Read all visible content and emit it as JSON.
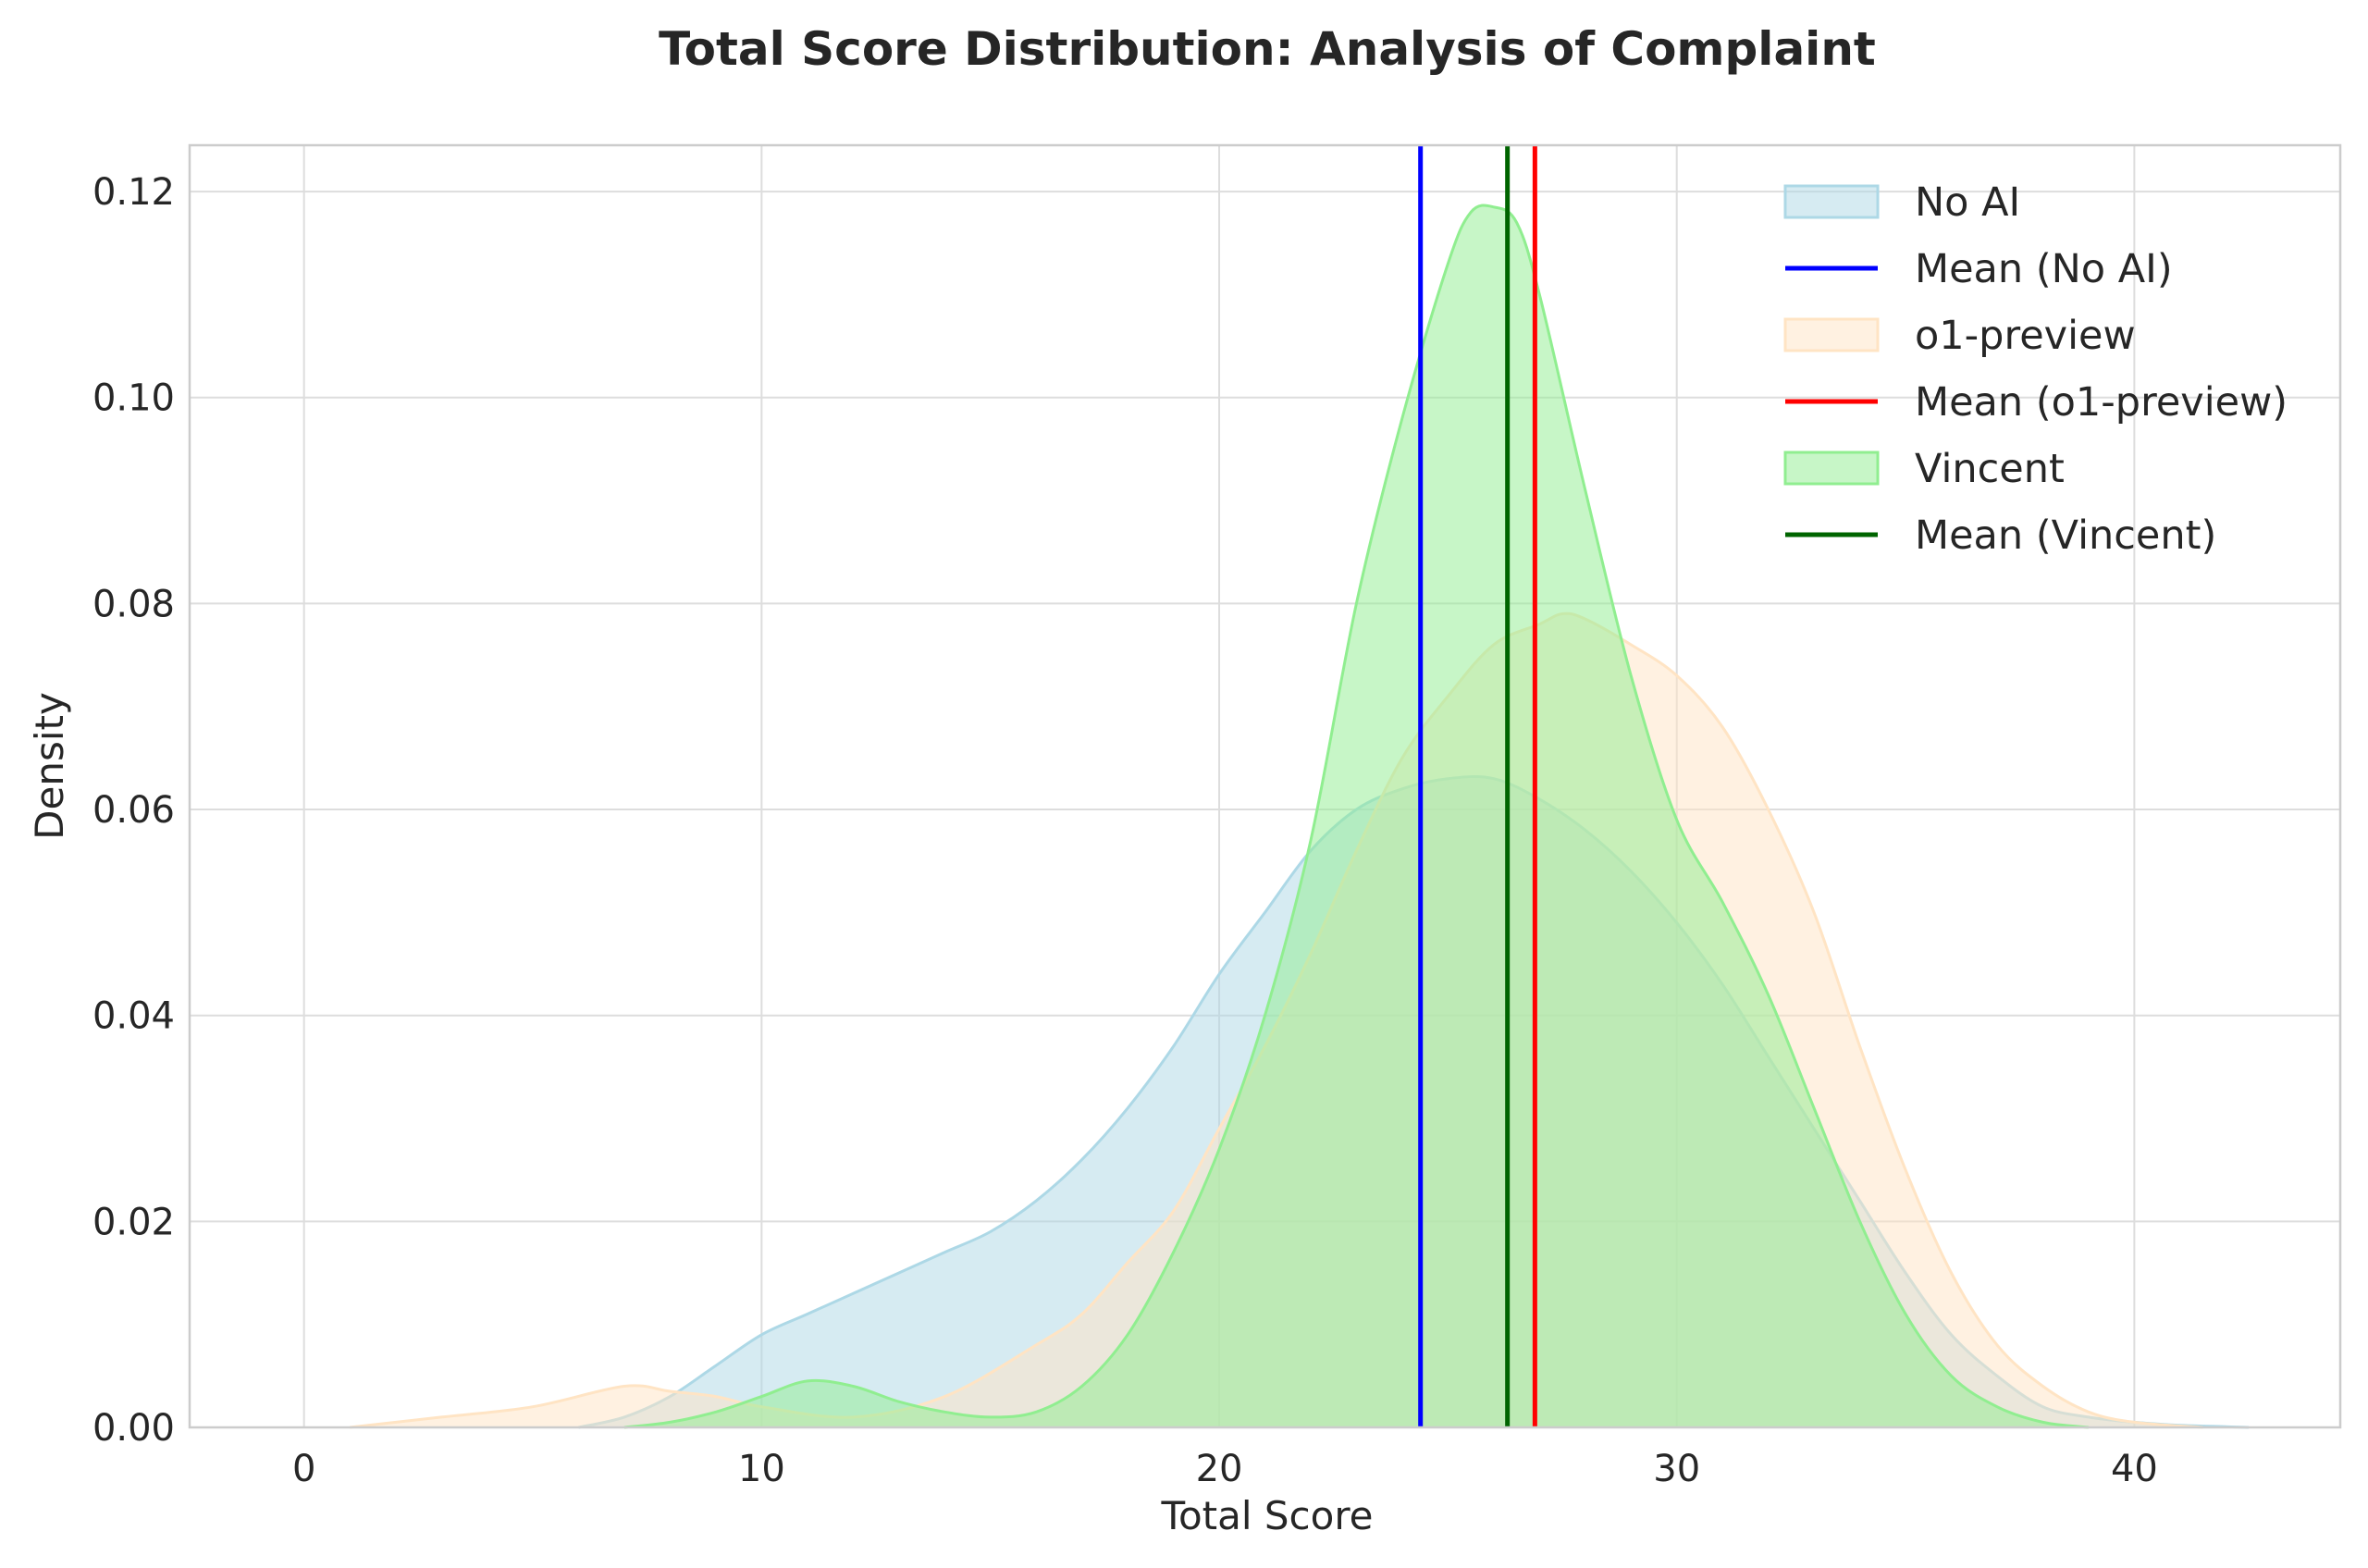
{
  "chart_data": {
    "type": "area",
    "title": "Total Score Distribution: Analysis of Complaint",
    "xlabel": "Total Score",
    "ylabel": "Density",
    "xlim": [
      -2.5,
      44.5
    ],
    "ylim": [
      0,
      0.1245
    ],
    "x_ticks": [
      0,
      10,
      20,
      30,
      40
    ],
    "x_tick_labels": [
      "0",
      "10",
      "20",
      "30",
      "40"
    ],
    "y_ticks": [
      0,
      0.02,
      0.04,
      0.06,
      0.08,
      0.1,
      0.12
    ],
    "y_tick_labels": [
      "0.00",
      "0.02",
      "0.04",
      "0.06",
      "0.08",
      "0.10",
      "0.12"
    ],
    "grid": true,
    "legend_position": "top-right",
    "series": [
      {
        "name": "No AI",
        "color": "#add8e6",
        "x": [
          6,
          7,
          8,
          9,
          10,
          11,
          12,
          13,
          14,
          15,
          16,
          17,
          18,
          19,
          20,
          21,
          22,
          23,
          24,
          25,
          26,
          27,
          28,
          29,
          30,
          31,
          32,
          33,
          34,
          35,
          36,
          37,
          38,
          39,
          40,
          41,
          42.5
        ],
        "values": [
          0.0,
          0.001,
          0.003,
          0.006,
          0.009,
          0.011,
          0.013,
          0.015,
          0.017,
          0.019,
          0.022,
          0.026,
          0.031,
          0.037,
          0.044,
          0.05,
          0.056,
          0.06,
          0.062,
          0.063,
          0.063,
          0.061,
          0.058,
          0.054,
          0.049,
          0.043,
          0.036,
          0.029,
          0.022,
          0.015,
          0.009,
          0.005,
          0.002,
          0.001,
          0.0005,
          0.0002,
          0.0
        ]
      },
      {
        "name": "o1-preview",
        "color": "#ffe4c4",
        "x": [
          1,
          3,
          5,
          7,
          8,
          9,
          10,
          12,
          14,
          16,
          17,
          18,
          19,
          20,
          21,
          22,
          23,
          24,
          25,
          26,
          27,
          27.5,
          28,
          29,
          30,
          31,
          32,
          33,
          34,
          35,
          36,
          37,
          38,
          39,
          40,
          41.5
        ],
        "values": [
          0.0,
          0.001,
          0.002,
          0.004,
          0.0035,
          0.003,
          0.002,
          0.001,
          0.003,
          0.008,
          0.011,
          0.016,
          0.021,
          0.029,
          0.037,
          0.046,
          0.056,
          0.065,
          0.071,
          0.076,
          0.078,
          0.079,
          0.0785,
          0.076,
          0.073,
          0.068,
          0.06,
          0.05,
          0.037,
          0.025,
          0.015,
          0.008,
          0.004,
          0.0015,
          0.0005,
          0.0
        ]
      },
      {
        "name": "Vincent",
        "color": "#90ee90",
        "x": [
          7,
          8,
          9,
          10,
          11,
          12,
          13,
          14,
          15,
          16,
          17,
          18,
          19,
          20,
          21,
          22,
          23,
          24,
          25,
          25.5,
          26,
          26.5,
          27,
          28,
          29,
          30,
          31,
          32,
          33,
          34,
          35,
          36,
          37,
          38,
          39
        ],
        "values": [
          0.0,
          0.0005,
          0.0015,
          0.003,
          0.0045,
          0.004,
          0.0025,
          0.0015,
          0.001,
          0.0015,
          0.004,
          0.009,
          0.017,
          0.027,
          0.04,
          0.057,
          0.08,
          0.098,
          0.113,
          0.118,
          0.1185,
          0.117,
          0.11,
          0.091,
          0.073,
          0.059,
          0.051,
          0.042,
          0.031,
          0.02,
          0.011,
          0.005,
          0.002,
          0.0005,
          0.0
        ]
      }
    ],
    "mean_lines": [
      {
        "name": "Mean (No AI)",
        "x": 24.4,
        "color": "#0000ff"
      },
      {
        "name": "Mean (o1-preview)",
        "x": 26.9,
        "color": "#ff0000"
      },
      {
        "name": "Mean (Vincent)",
        "x": 26.3,
        "color": "#006400"
      }
    ],
    "legend": [
      {
        "label": "No AI",
        "kind": "patch",
        "fill": "#add8e6",
        "fill_opacity": 0.5,
        "stroke": "#add8e6"
      },
      {
        "label": "Mean (No AI)",
        "kind": "line",
        "stroke": "#0000ff"
      },
      {
        "label": "o1-preview",
        "kind": "patch",
        "fill": "#ffe4c4",
        "fill_opacity": 0.5,
        "stroke": "#ffe4c4"
      },
      {
        "label": "Mean (o1-preview)",
        "kind": "line",
        "stroke": "#ff0000"
      },
      {
        "label": "Vincent",
        "kind": "patch",
        "fill": "#90ee90",
        "fill_opacity": 0.5,
        "stroke": "#90ee90"
      },
      {
        "label": "Mean (Vincent)",
        "kind": "line",
        "stroke": "#006400"
      }
    ]
  }
}
